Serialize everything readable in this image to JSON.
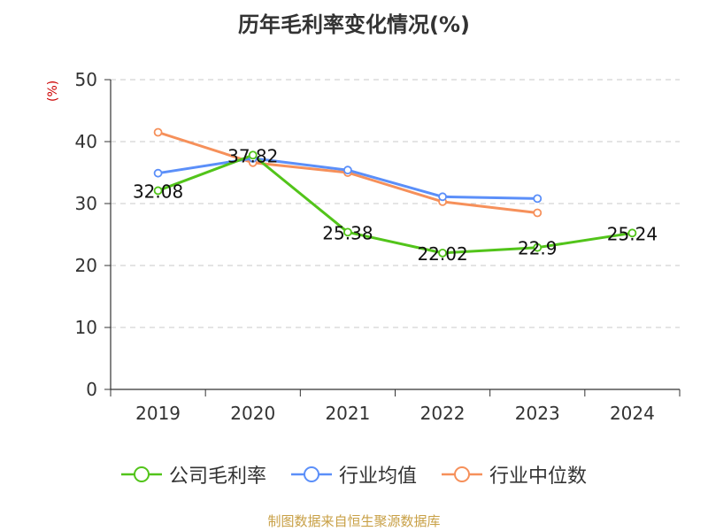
{
  "chart_data": {
    "type": "line",
    "title": "历年毛利率变化情况(%)",
    "ylabel": "(%)",
    "categories": [
      "2019",
      "2020",
      "2021",
      "2022",
      "2023",
      "2024"
    ],
    "ylim": [
      0,
      50
    ],
    "yticks": [
      "0",
      "10",
      "20",
      "30",
      "40",
      "50"
    ],
    "grid": true,
    "legend_position": "bottom",
    "series": [
      {
        "name": "公司毛利率",
        "color": "#52c41a",
        "values": [
          32.08,
          37.82,
          25.38,
          22.02,
          22.9,
          25.24
        ],
        "labels": [
          "32.08",
          "37.82",
          "25.38",
          "22.02",
          "22.9",
          "25.24"
        ]
      },
      {
        "name": "行业均值",
        "color": "#5b8ff9",
        "values": [
          34.9,
          37.3,
          35.4,
          31.1,
          30.8,
          null
        ]
      },
      {
        "name": "行业中位数",
        "color": "#f6905a",
        "values": [
          41.5,
          36.6,
          35.0,
          30.3,
          28.5,
          null
        ]
      }
    ]
  },
  "footer": {
    "source": "制图数据来自恒生聚源数据库"
  }
}
